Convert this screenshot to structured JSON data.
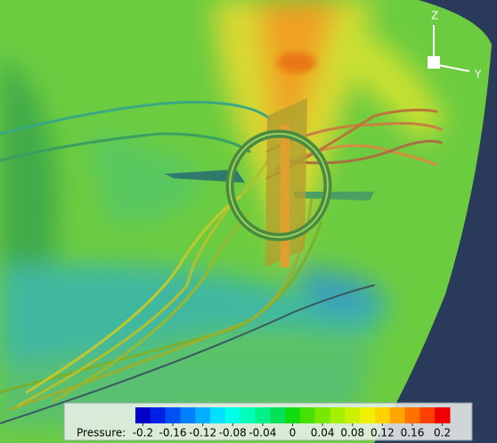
{
  "scene": {
    "axis_z": "Z",
    "axis_y": "Y"
  },
  "colorbar": {
    "label": "Pressure:",
    "clim": [
      -0.21,
      0.21
    ],
    "ticks": [
      -0.2,
      -0.16,
      -0.12,
      -0.08,
      -0.04,
      0,
      0.04,
      0.08,
      0.12,
      0.16,
      0.2
    ],
    "colors": [
      "#0000c8",
      "#0022e6",
      "#0050f5",
      "#0080ff",
      "#00b0ff",
      "#00e0ff",
      "#00ffe6",
      "#00ffb8",
      "#00f088",
      "#00e058",
      "#10dc10",
      "#48e000",
      "#78e800",
      "#a4f000",
      "#ccf000",
      "#f0f000",
      "#ffd200",
      "#ffa400",
      "#ff7400",
      "#ff4000",
      "#f00000"
    ]
  }
}
